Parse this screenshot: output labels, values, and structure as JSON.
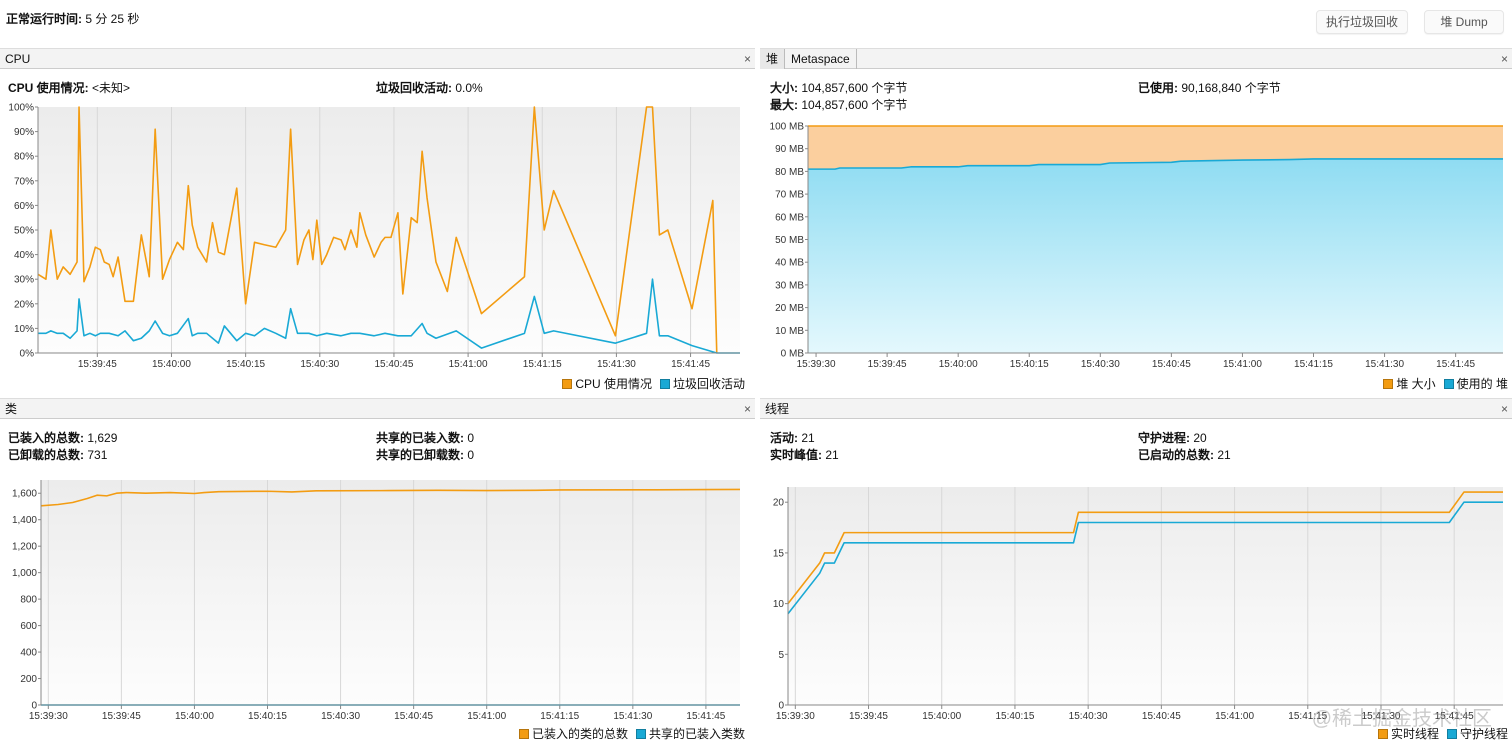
{
  "uptime": {
    "label": "正常运行时间:",
    "value": "5 分 25 秒"
  },
  "toolbar": {
    "gc_label": "执行垃圾回收",
    "dump_label": "堆 Dump"
  },
  "cpu_panel": {
    "title": "CPU",
    "cpu_usage_label": "CPU 使用情况:",
    "cpu_usage_value": "<未知>",
    "gc_activity_label": "垃圾回收活动:",
    "gc_activity_value": "0.0%",
    "legend": [
      "CPU 使用情况",
      "垃圾回收活动"
    ]
  },
  "heap_panel": {
    "tabs": [
      "堆",
      "Metaspace"
    ],
    "size_label": "大小:",
    "size_value": "104,857,600 个字节",
    "max_label": "最大:",
    "max_value": "104,857,600 个字节",
    "used_label": "已使用:",
    "used_value": "90,168,840 个字节",
    "legend": [
      "堆 大小",
      "使用的 堆"
    ]
  },
  "classes_panel": {
    "title": "类",
    "loaded_label": "已装入的总数:",
    "loaded_value": "1,629",
    "unloaded_label": "已卸载的总数:",
    "unloaded_value": "731",
    "shared_loaded_label": "共享的已装入数:",
    "shared_loaded_value": "0",
    "shared_unloaded_label": "共享的已卸载数:",
    "shared_unloaded_value": "0",
    "legend": [
      "已装入的类的总数",
      "共享的已装入类数"
    ]
  },
  "threads_panel": {
    "title": "线程",
    "live_label": "活动:",
    "live_value": "21",
    "peak_label": "实时峰值:",
    "peak_value": "21",
    "daemon_label": "守护进程:",
    "daemon_value": "20",
    "started_label": "已启动的总数:",
    "started_value": "21",
    "legend": [
      "实时线程",
      "守护线程"
    ]
  },
  "watermark": "@稀土掘金技术社区",
  "colors": {
    "orange": "#f39c12",
    "blue": "#19a9d5",
    "heap_fill": "#fbcf9e",
    "used_fill": "#9be3f5"
  },
  "chart_data": [
    {
      "id": "cpu",
      "type": "line",
      "x_unit": "seconds since 15:39:30",
      "xlim": [
        3,
        145
      ],
      "ylim": [
        0,
        100
      ],
      "yticks": [
        0,
        10,
        20,
        30,
        40,
        50,
        60,
        70,
        80,
        90,
        100
      ],
      "ytick_labels": [
        "0%",
        "10%",
        "20%",
        "30%",
        "40%",
        "50%",
        "60%",
        "70%",
        "80%",
        "90%",
        "100%"
      ],
      "xticks": [
        15,
        30,
        45,
        60,
        75,
        90,
        105,
        120,
        135
      ],
      "xtick_labels": [
        "15:39:45",
        "15:40:00",
        "15:40:15",
        "15:40:30",
        "15:40:45",
        "15:41:00",
        "15:41:15",
        "15:41:30",
        "15:41:45"
      ],
      "series": [
        {
          "name": "CPU 使用情况",
          "color": "#f39c12",
          "x": [
            3,
            4.6,
            5.6,
            6.9,
            8.1,
            9.5,
            10.9,
            11.3,
            12.3,
            13.5,
            14.6,
            15.6,
            16.4,
            17.4,
            18.2,
            19.2,
            20.6,
            22.3,
            23.9,
            25.5,
            26.7,
            28.2,
            29.6,
            31.2,
            32.4,
            33.4,
            34.2,
            35.3,
            37.1,
            38.3,
            39.5,
            40.7,
            43.2,
            45,
            46.8,
            48.8,
            51.1,
            53.1,
            54.1,
            55.5,
            56.8,
            57.8,
            58.6,
            59.4,
            60.4,
            61.4,
            62.8,
            64.3,
            65.1,
            66.3,
            67.5,
            68.1,
            69.3,
            71,
            72.4,
            73.2,
            74.4,
            75.8,
            76.8,
            78.5,
            79.7,
            80.7,
            81.7,
            83.5,
            85.8,
            87.6,
            92.7,
            101.4,
            103.4,
            105.4,
            107.3,
            119.8,
            126.1,
            127.3,
            128.7,
            130.4,
            135.3,
            139.5,
            140.3
          ],
          "y": [
            32,
            30,
            50,
            30,
            35,
            32,
            37,
            100,
            29,
            35,
            43,
            42,
            37,
            36,
            31,
            39,
            21,
            21,
            48,
            31,
            91,
            30,
            38,
            45,
            42,
            68,
            52,
            43,
            37,
            53,
            41,
            40,
            67,
            20,
            45,
            44,
            43,
            50,
            91,
            36,
            46,
            50,
            38,
            54,
            36,
            40,
            47,
            46,
            42,
            50,
            43,
            57,
            48,
            39,
            45,
            47,
            47,
            57,
            24,
            55,
            53,
            82,
            63,
            37,
            25,
            47,
            16,
            31,
            100,
            50,
            66,
            7,
            100,
            100,
            48,
            50,
            18,
            62,
            0
          ]
        },
        {
          "name": "垃圾回收活动",
          "color": "#19a9d5",
          "x": [
            3,
            4.6,
            5.6,
            6.9,
            8.1,
            9.5,
            10.9,
            11.3,
            12.3,
            13.5,
            14.6,
            15.6,
            17.4,
            19.2,
            20.6,
            22.3,
            23.9,
            25.5,
            26.7,
            28.2,
            29.6,
            31.2,
            33.4,
            34.2,
            35.3,
            37.1,
            39.5,
            40.7,
            43.2,
            45,
            46.8,
            48.8,
            51.1,
            53.1,
            54.1,
            55.5,
            57.8,
            59.4,
            61.4,
            64.3,
            66.3,
            68.1,
            71,
            73.2,
            75.8,
            78.5,
            80.7,
            81.7,
            83.5,
            87.6,
            92.7,
            101.4,
            103.4,
            105.4,
            107.3,
            119.8,
            126.1,
            127.3,
            128.7,
            130.4,
            135.3,
            140.3,
            145
          ],
          "y": [
            8,
            8,
            9,
            8,
            8,
            6,
            9,
            22,
            7,
            8,
            7,
            8,
            8,
            7,
            9,
            5,
            6,
            9,
            13,
            8,
            7,
            8,
            14,
            7,
            8,
            8,
            4,
            11,
            5,
            8,
            7,
            10,
            8,
            6,
            18,
            8,
            8,
            7,
            8,
            7,
            8,
            8,
            7,
            8,
            7,
            7,
            12,
            8,
            6,
            9,
            2,
            8,
            23,
            8,
            9,
            4,
            8,
            30,
            7,
            7,
            3,
            0,
            0
          ]
        }
      ]
    },
    {
      "id": "heap",
      "type": "area",
      "x_unit": "seconds since 15:39:30",
      "xlim": [
        -1.7,
        145
      ],
      "ylim": [
        0,
        100
      ],
      "yticks": [
        0,
        10,
        20,
        30,
        40,
        50,
        60,
        70,
        80,
        90,
        100
      ],
      "ytick_labels": [
        "0 MB",
        "10 MB",
        "20 MB",
        "30 MB",
        "40 MB",
        "50 MB",
        "60 MB",
        "70 MB",
        "80 MB",
        "90 MB",
        "100 MB"
      ],
      "xticks": [
        0,
        15,
        30,
        45,
        60,
        75,
        90,
        105,
        120,
        135
      ],
      "xtick_labels": [
        "15:39:30",
        "15:39:45",
        "15:40:00",
        "15:40:15",
        "15:40:30",
        "15:40:45",
        "15:41:00",
        "15:41:15",
        "15:41:30",
        "15:41:45"
      ],
      "series": [
        {
          "name": "堆 大小",
          "color": "#f39c12",
          "fill": "#fbcf9e",
          "x": [
            -1.7,
            145
          ],
          "y": [
            100,
            100
          ]
        },
        {
          "name": "使用的 堆",
          "color": "#19a9d5",
          "fill": "#9be3f5",
          "x": [
            -1.7,
            4,
            5,
            18,
            20,
            30,
            32,
            45,
            47,
            60,
            62,
            75,
            77,
            90,
            100,
            105,
            145
          ],
          "y": [
            81,
            81,
            81.5,
            81.5,
            82,
            82,
            82.5,
            82.5,
            83,
            83,
            83.7,
            84,
            84.5,
            85,
            85.2,
            85.5,
            85.5
          ]
        }
      ]
    },
    {
      "id": "classes",
      "type": "line",
      "x_unit": "seconds since 15:39:30",
      "xlim": [
        -1.5,
        142
      ],
      "ylim": [
        0,
        1700
      ],
      "yticks": [
        0,
        200,
        400,
        600,
        800,
        1000,
        1200,
        1400,
        1600
      ],
      "ytick_labels": [
        "0",
        "200",
        "400",
        "600",
        "800",
        "1,000",
        "1,200",
        "1,400",
        "1,600"
      ],
      "xticks": [
        0,
        15,
        30,
        45,
        60,
        75,
        90,
        105,
        120,
        135
      ],
      "xtick_labels": [
        "15:39:30",
        "15:39:45",
        "15:40:00",
        "15:40:15",
        "15:40:30",
        "15:40:45",
        "15:41:00",
        "15:41:15",
        "15:41:30",
        "15:41:45"
      ],
      "series": [
        {
          "name": "已装入的类的总数",
          "color": "#f39c12",
          "x": [
            -1.5,
            2,
            5,
            8,
            10,
            12,
            14,
            16,
            20,
            25,
            30,
            32,
            35,
            45,
            50,
            55,
            70,
            80,
            90,
            100,
            105,
            125,
            135,
            142
          ],
          "y": [
            1505,
            1515,
            1530,
            1560,
            1585,
            1580,
            1600,
            1605,
            1600,
            1605,
            1598,
            1605,
            1612,
            1615,
            1610,
            1618,
            1620,
            1622,
            1620,
            1622,
            1625,
            1626,
            1628,
            1629
          ]
        },
        {
          "name": "共享的已装入类数",
          "color": "#19a9d5",
          "x": [
            -1.5,
            142
          ],
          "y": [
            0,
            0
          ]
        }
      ]
    },
    {
      "id": "threads",
      "type": "step",
      "x_unit": "seconds since 15:39:30",
      "xlim": [
        -1.5,
        145
      ],
      "ylim": [
        0,
        21.5
      ],
      "yticks": [
        0,
        5,
        10,
        15,
        20
      ],
      "ytick_labels": [
        "0",
        "5",
        "10",
        "15",
        "20"
      ],
      "xticks": [
        0,
        15,
        30,
        45,
        60,
        75,
        90,
        105,
        120,
        135
      ],
      "xtick_labels": [
        "15:39:30",
        "15:39:45",
        "15:40:00",
        "15:40:15",
        "15:40:30",
        "15:40:45",
        "15:41:00",
        "15:41:15",
        "15:41:30",
        "15:41:45"
      ],
      "series": [
        {
          "name": "实时线程",
          "color": "#f39c12",
          "x": [
            -1.5,
            5,
            6,
            8,
            9,
            10,
            57,
            58,
            134,
            137,
            145
          ],
          "y": [
            10,
            14,
            15,
            15,
            16,
            17,
            17,
            19,
            19,
            21,
            21
          ]
        },
        {
          "name": "守护线程",
          "color": "#19a9d5",
          "x": [
            -1.5,
            5,
            6,
            8,
            9,
            10,
            57,
            58,
            134,
            137,
            145
          ],
          "y": [
            9,
            13,
            14,
            14,
            15,
            16,
            16,
            18,
            18,
            20,
            20
          ]
        }
      ]
    }
  ]
}
